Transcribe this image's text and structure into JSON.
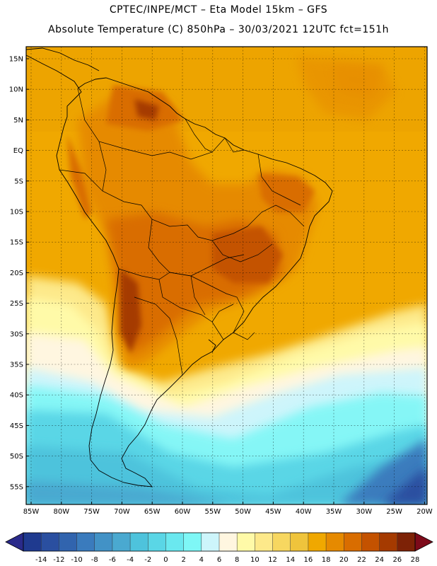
{
  "header": {
    "title_line1": "CPTEC/INPE/MCT –  Eta Model 15km – GFS",
    "title_line2": "Absolute Temperature (C) 850hPa – 30/03/2021 12UTC fct=151h"
  },
  "map": {
    "lat_labels": [
      "15N",
      "10N",
      "5N",
      "EQ",
      "5S",
      "10S",
      "15S",
      "20S",
      "25S",
      "30S",
      "35S",
      "40S",
      "45S",
      "50S",
      "55S"
    ],
    "lon_labels": [
      "85W",
      "80W",
      "75W",
      "70W",
      "65W",
      "60W",
      "55W",
      "50W",
      "45W",
      "40W",
      "35W",
      "30W",
      "25W",
      "20W"
    ]
  },
  "colorbar": {
    "labels": [
      "-14",
      "-12",
      "-10",
      "-8",
      "-6",
      "-4",
      "-2",
      "0",
      "2",
      "4",
      "6",
      "8",
      "10",
      "12",
      "14",
      "16",
      "18",
      "20",
      "22",
      "24",
      "26",
      "28"
    ],
    "colors": [
      "#1f3a8f",
      "#2a4fa0",
      "#3164ae",
      "#3a7bbd",
      "#4292c6",
      "#4aa9d0",
      "#4ec3dc",
      "#5ad6e6",
      "#6ae8ef",
      "#7ef7f6",
      "#cdf5fb",
      "#fff6e0",
      "#fffaa8",
      "#fde98a",
      "#f7d760",
      "#efc43c",
      "#f0a800",
      "#e68a00",
      "#d96d00",
      "#c45200",
      "#a53a00",
      "#7d2206"
    ],
    "low_arrow_color": "#2a2a8a",
    "high_arrow_color": "#7d0a1a"
  }
}
